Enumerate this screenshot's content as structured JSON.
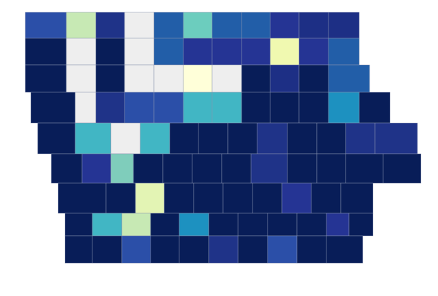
{
  "map": {
    "rows": [
      [
        "#2b4fa8",
        "#c7e9b4",
        "#1f3388",
        "#eeeeee",
        "#225ea8",
        "#6ccdbe",
        "#225ea8",
        "#225ea8",
        "#253494",
        "#1d2f85",
        "#1d2f85"
      ],
      [
        "#081d58",
        "#eeeeee",
        "#081d58",
        "#eeeeee",
        "#225ea8",
        "#253494",
        "#253494",
        "#253494",
        "#f0f9b0",
        "#253494",
        "#225ea8"
      ],
      [
        "#081d58",
        "#eeeeee",
        "#081d58",
        "#eeeeee",
        "#eeeeee",
        "#ffffd9",
        "#eeeeee",
        "#081d58",
        "#1d2f85",
        "#081d58",
        "#225ea8"
      ],
      [
        "#081d58",
        "#eeeeee",
        "#1f3388",
        "#2b4fa8",
        "#2b4fa8",
        "#41b6c4",
        "#41b6c4",
        "#081d58",
        "#081d58",
        "#081d58",
        "#1d91c0",
        "#081d58"
      ],
      [
        "#081d58",
        "#41b6c4",
        "#eeeeee",
        "#41b6c4",
        "#081d58",
        "#081d58",
        "#081d58",
        "#1f3388",
        "#081d58",
        "#081d58",
        "#1f3388",
        "#1f3388"
      ],
      [
        "#081d58",
        "#253494",
        "#7fcdbb",
        "#081d58",
        "#081d58",
        "#081d58",
        "#081d58",
        "#1f3388",
        "#081d58",
        "#081d58",
        "#081d58",
        "#081d58"
      ],
      [
        "#081d58",
        "#081d58",
        "#e3f4b4",
        "#081d58",
        "#081d58",
        "#081d58",
        "#081d58",
        "#253494",
        "#081d58",
        "#081d58"
      ],
      [
        "#081d58",
        "#41b6c4",
        "#c7e9b4",
        "#081d58",
        "#1d91c0",
        "#081d58",
        "#081d58",
        "#081d58",
        "#081d58",
        "#253494",
        "#081d58"
      ],
      [
        "#081d58",
        "#081d58",
        "#2b4fa8",
        "#081d58",
        "#081d58",
        "#1f3388",
        "#081d58",
        "#2b4fa8",
        "#081d58",
        "#081d58"
      ]
    ]
  }
}
